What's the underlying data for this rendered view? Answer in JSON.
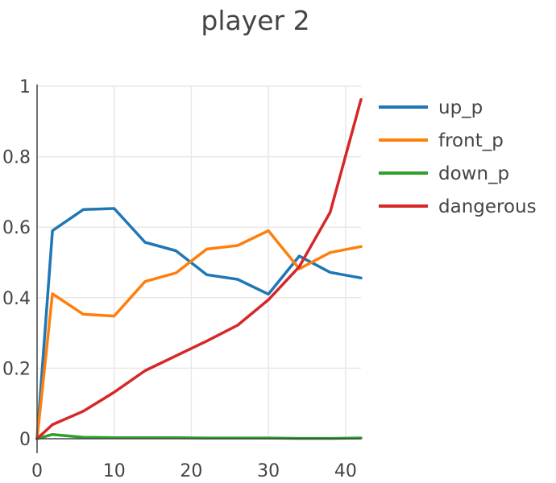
{
  "chart_data": {
    "type": "line",
    "title": "player 2",
    "xlabel": "",
    "ylabel": "",
    "xlim": [
      0,
      42
    ],
    "ylim": [
      0,
      1
    ],
    "grid": true,
    "legend": "right",
    "xticks": [
      0,
      10,
      20,
      30,
      40
    ],
    "yticks": [
      0,
      0.2,
      0.4,
      0.6,
      0.8,
      1
    ],
    "ytick_labels": [
      "0",
      "0.2",
      "0.4",
      "0.6",
      "0.8",
      "1"
    ],
    "x": [
      0,
      2,
      6,
      10,
      14,
      18,
      22,
      26,
      30,
      34,
      38,
      42
    ],
    "series": [
      {
        "name": "up_p",
        "color": "#1f77b4",
        "values": [
          0,
          0.59,
          0.65,
          0.653,
          0.557,
          0.533,
          0.465,
          0.452,
          0.41,
          0.518,
          0.472,
          0.456
        ]
      },
      {
        "name": "front_p",
        "color": "#ff7f0e",
        "values": [
          0,
          0.411,
          0.353,
          0.348,
          0.446,
          0.47,
          0.538,
          0.548,
          0.59,
          0.482,
          0.528,
          0.545
        ]
      },
      {
        "name": "down_p",
        "color": "#2ca02c",
        "values": [
          0,
          0.012,
          0.004,
          0.003,
          0.003,
          0.003,
          0.002,
          0.002,
          0.002,
          0.001,
          0.001,
          0.002
        ]
      },
      {
        "name": "dangerous",
        "color": "#d62728",
        "values": [
          0,
          0.04,
          0.078,
          0.132,
          0.193,
          0.235,
          0.277,
          0.322,
          0.394,
          0.488,
          0.642,
          0.962
        ]
      }
    ]
  }
}
